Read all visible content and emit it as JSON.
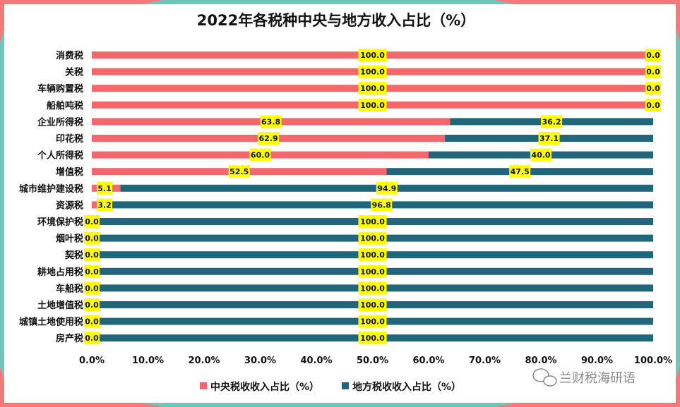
{
  "colors": {
    "central": "#f4676a",
    "local": "#22667c",
    "label_box": "#ffff00",
    "frame_teal": "#6cc6ba",
    "frame_coral": "#f6787a"
  },
  "watermark": {
    "text": "兰财税海研语",
    "icon": "wechat-icon"
  },
  "chart_data": {
    "type": "bar",
    "orientation": "horizontal",
    "stacked": true,
    "title": "2022年各税种中央与地方收入占比（%）",
    "categories": [
      "消费税",
      "关税",
      "车辆购置税",
      "船舶吨税",
      "企业所得税",
      "印花税",
      "个人所得税",
      "增值税",
      "城市维护建设税",
      "资源税",
      "环境保护税",
      "烟叶税",
      "契税",
      "耕地占用税",
      "车船税",
      "土地增值税",
      "城镇土地使用税",
      "房产税"
    ],
    "series": [
      {
        "name": "中央税收收入占比（%）",
        "values": [
          100.0,
          100.0,
          100.0,
          100.0,
          63.8,
          62.9,
          60.0,
          52.5,
          5.1,
          3.2,
          0.0,
          0.0,
          0.0,
          0.0,
          0.0,
          0.0,
          0.0,
          0.0
        ]
      },
      {
        "name": "地方税收收入占比（%）",
        "values": [
          0.0,
          0.0,
          0.0,
          0.0,
          36.2,
          37.1,
          40.0,
          47.5,
          94.9,
          96.8,
          100.0,
          100.0,
          100.0,
          100.0,
          100.0,
          100.0,
          100.0,
          100.0
        ]
      }
    ],
    "data_labels": {
      "central": [
        "100.0",
        "100.0",
        "100.0",
        "100.0",
        "63.8",
        "62.9",
        "60.0",
        "52.5",
        "5.1",
        "3.2",
        "0.0",
        "0.0",
        "0.0",
        "0.0",
        "0.0",
        "0.0",
        "0.0",
        "0.0"
      ],
      "local": [
        "0.0",
        "0.0",
        "0.0",
        "0.0",
        "36.2",
        "37.1",
        "40.0",
        "47.5",
        "94.9",
        "96.8",
        "100.0",
        "100.0",
        "100.0",
        "100.0",
        "100.0",
        "100.0",
        "100.0",
        "100.0"
      ]
    },
    "xlim": [
      0,
      100
    ],
    "xticks": [
      0,
      10,
      20,
      30,
      40,
      50,
      60,
      70,
      80,
      90,
      100
    ],
    "xtick_labels": [
      "0.0%",
      "10.0%",
      "20.0%",
      "30.0%",
      "40.0%",
      "50.0%",
      "60.0%",
      "70.0%",
      "80.0%",
      "90.0%",
      "100.0%"
    ],
    "grid": false,
    "legend_position": "bottom"
  }
}
